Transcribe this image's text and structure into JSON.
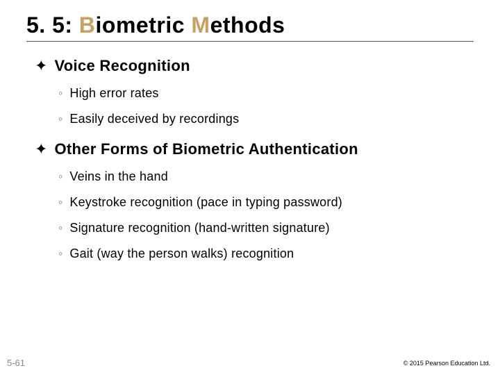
{
  "title_plain": "5. 5:",
  "title_accent_prefix": "B",
  "title_rest_1": "iometric",
  "title_accent_prefix_2": "M",
  "title_rest_2": "ethods",
  "sections": [
    {
      "heading": "Voice Recognition",
      "items": [
        "High error rates",
        "Easily deceived by recordings"
      ]
    },
    {
      "heading": "Other Forms of Biometric Authentication",
      "items": [
        "Veins in the hand",
        "Keystroke recognition (pace in typing password)",
        "Signature recognition (hand-written signature)",
        "Gait (way the person walks) recognition"
      ]
    }
  ],
  "page_number": "5-61",
  "copyright": "© 2015 Pearson Education Ltd.",
  "colors": {
    "accent": "#c8a060",
    "rule": "#555555",
    "submark": "#777777",
    "pagenum": "#8a8a8a",
    "bg": "#ffffff",
    "text": "#000000"
  },
  "typography": {
    "title_fontsize": 32,
    "section_fontsize": 22,
    "body_fontsize": 18,
    "pagenum_fontsize": 13,
    "copyright_fontsize": 9
  }
}
